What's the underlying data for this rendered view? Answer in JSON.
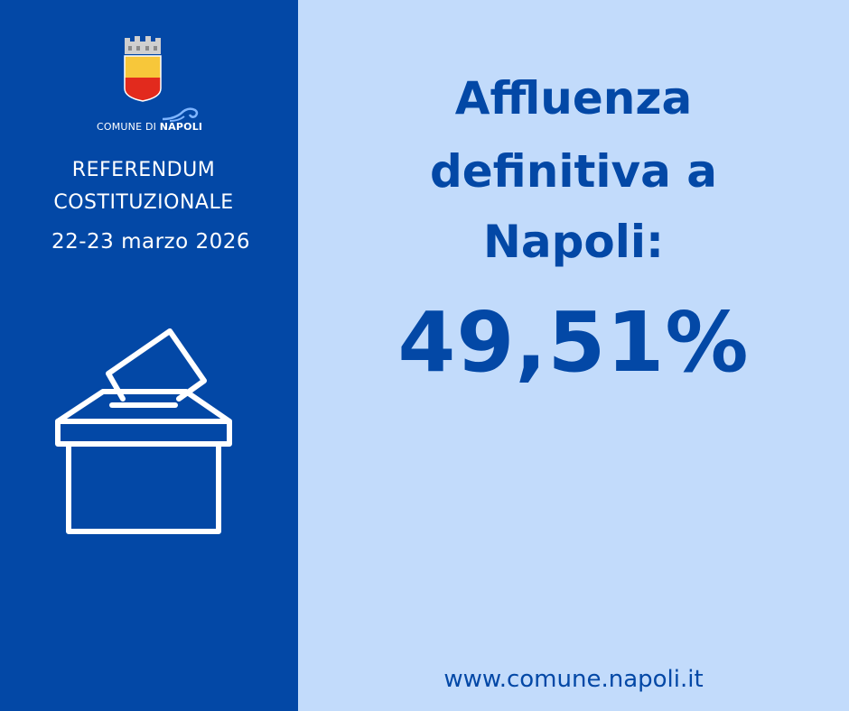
{
  "sidebar": {
    "logo": {
      "prefix": "COMUNE DI ",
      "city": "NAPOLI"
    },
    "event_line1": "REFERENDUM",
    "event_line2": "COSTITUZIONALE",
    "dates": "22-23 marzo 2026",
    "icon": "ballot-box-icon"
  },
  "main": {
    "title_line1": "Affluenza",
    "title_line2": "definitiva a",
    "title_line3": "Napoli:",
    "turnout": "49,51%",
    "website": "www.comune.napoli.it"
  },
  "colors": {
    "primary_blue": "#0348a6",
    "light_blue": "#c2dbfb",
    "crest_yellow": "#f7c73a",
    "crest_red": "#e22a1d"
  }
}
